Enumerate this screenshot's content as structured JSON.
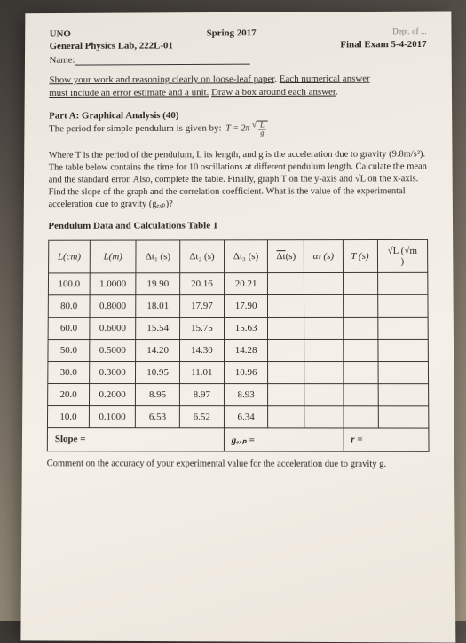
{
  "header": {
    "left1": "UNO",
    "mid": "Spring 2017",
    "right_dept": "Dept. of ...",
    "left2": "General Physics Lab, 222L-01",
    "right2": "Final Exam 5-4-2017",
    "name_label": "Name:"
  },
  "instructions": {
    "l1a": "Show your work and reasoning clearly on loose-leaf paper",
    "l1b": ". ",
    "l1c": "Each numerical answer",
    "l2a": "must include an error estimate and a unit.",
    "l2b": " ",
    "l2c": "Draw a box around each answer",
    "l2d": "."
  },
  "partA": {
    "title": "Part A: Graphical Analysis (40)",
    "line": "The period for simple pendulum is given by:",
    "eq_lhs": "T = 2π",
    "eq_num": "L",
    "eq_den": "g"
  },
  "bodytext": "Where T is the period of the pendulum, L its length, and g is the acceleration due to gravity (9.8m/s²). The table below contains the time for 10 oscillations at different pendulum length. Calculate the mean and the standard error. Also, complete the table. Finally, graph T on the y-axis and √L on the x-axis. Find the slope of the graph and the correlation coefficient. What is the value of the experimental acceleration due to gravity (gₑₓₚ)?",
  "tabletitle": "Pendulum Data and Calculations Table 1",
  "cols": {
    "c0": "L(cm)",
    "c1": "L(m)",
    "c2": "Δt₁ (s)",
    "c3": "Δt₂ (s)",
    "c4": "Δt₃ (s)",
    "c5_bar": "Δt",
    "c5_suf": "(s)",
    "c6": "αₜ (s)",
    "c7": "T (s)",
    "c8a": "√L (√m",
    "c8b": ")"
  },
  "rows": [
    {
      "c0": "100.0",
      "c1": "1.0000",
      "c2": "19.90",
      "c3": "20.16",
      "c4": "20.21"
    },
    {
      "c0": "80.0",
      "c1": "0.8000",
      "c2": "18.01",
      "c3": "17.97",
      "c4": "17.90"
    },
    {
      "c0": "60.0",
      "c1": "0.6000",
      "c2": "15.54",
      "c3": "15.75",
      "c4": "15.63"
    },
    {
      "c0": "50.0",
      "c1": "0.5000",
      "c2": "14.20",
      "c3": "14.30",
      "c4": "14.28"
    },
    {
      "c0": "30.0",
      "c1": "0.3000",
      "c2": "10.95",
      "c3": "11.01",
      "c4": "10.96"
    },
    {
      "c0": "20.0",
      "c1": "0.2000",
      "c2": "8.95",
      "c3": "8.97",
      "c4": "8.93"
    },
    {
      "c0": "10.0",
      "c1": "0.1000",
      "c2": "6.53",
      "c3": "6.52",
      "c4": "6.34"
    }
  ],
  "footer": {
    "slope": "Slope =",
    "gexp": "gₑₓₚ =",
    "r": "r ="
  },
  "comment": "Comment on the accuracy of your experimental value for the acceleration due to gravity g."
}
